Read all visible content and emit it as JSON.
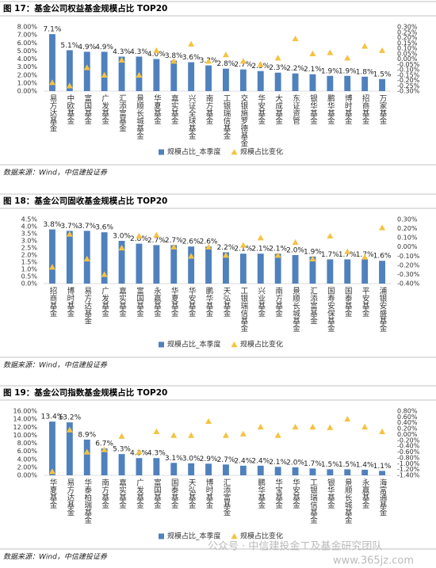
{
  "chart_data": [
    {
      "type": "bar",
      "title": "图 17：基金公司权益基金规模占比 TOP20",
      "source": "数据来源：Wind，中信建投证券",
      "categories": [
        "易方达基金",
        "中欧基金",
        "富国基金",
        "广发基金",
        "汇添富基金",
        "景顺长城基金",
        "华夏基金",
        "嘉实基金",
        "兴证全球基金",
        "南方基金",
        "工银瑞信基金",
        "交银施罗德基金",
        "华安基金",
        "大成基金",
        "东证资管",
        "银华基金",
        "鹏华基金",
        "博时基金",
        "招商基金",
        "万家基金"
      ],
      "series": [
        {
          "name": "规模占比_本季度",
          "type": "bar",
          "color": "#4f81bd",
          "values": [
            7.1,
            5.1,
            4.9,
            4.9,
            4.3,
            4.3,
            4.0,
            3.8,
            3.6,
            3.2,
            2.8,
            2.7,
            2.5,
            2.3,
            2.2,
            2.1,
            1.9,
            1.9,
            1.8,
            1.5
          ],
          "value_labels": [
            "7.1%",
            "5.1%",
            "4.9%",
            "4.9%",
            "4.3%",
            "4.3%",
            "4.0%",
            "3.8%",
            "3.6%",
            "3.2%",
            "2.8%",
            "2.7%",
            "2.5%",
            "2.3%",
            "2.2%",
            "2.1%",
            "1.9%",
            "1.9%",
            "1.8%",
            "1.5%"
          ]
        },
        {
          "name": "规模占比变化",
          "type": "scatter",
          "axis": "y2",
          "color": "#f5c342",
          "values": [
            -0.22,
            -0.25,
            -0.08,
            -0.15,
            -0.01,
            -0.15,
            0.08,
            -0.02,
            0.14,
            -0.02,
            0.04,
            -0.02,
            -0.05,
            0.01,
            0.19,
            0.05,
            0.06,
            0.01,
            0.12,
            0.08
          ]
        }
      ],
      "ylim": [
        0,
        8
      ],
      "yticks": [
        {
          "value": 0,
          "label": "0.00%"
        },
        {
          "value": 1,
          "label": "1.00%"
        },
        {
          "value": 2,
          "label": "2.00%"
        },
        {
          "value": 3,
          "label": "3.00%"
        },
        {
          "value": 4,
          "label": "4.00%"
        },
        {
          "value": 5,
          "label": "5.00%"
        },
        {
          "value": 6,
          "label": "6.00%"
        },
        {
          "value": 7,
          "label": "7.00%"
        },
        {
          "value": 8,
          "label": "8.00%"
        }
      ],
      "y2lim": [
        -0.3,
        0.3
      ],
      "y2ticks": [
        {
          "value": -0.3,
          "label": "-0.30%"
        },
        {
          "value": -0.25,
          "label": "-0.25%"
        },
        {
          "value": -0.2,
          "label": "-0.20%"
        },
        {
          "value": -0.15,
          "label": "-0.15%"
        },
        {
          "value": -0.1,
          "label": "-0.10%"
        },
        {
          "value": -0.05,
          "label": "-0.05%"
        },
        {
          "value": 0,
          "label": "0.00%"
        },
        {
          "value": 0.05,
          "label": "0.05%"
        },
        {
          "value": 0.1,
          "label": "0.10%"
        },
        {
          "value": 0.15,
          "label": "0.15%"
        },
        {
          "value": 0.2,
          "label": "0.20%"
        },
        {
          "value": 0.25,
          "label": "0.25%"
        },
        {
          "value": 0.3,
          "label": "0.30%"
        }
      ],
      "legend": "bottom"
    },
    {
      "type": "bar",
      "title": "图 18：基金公司固收基金规模占比 TOP20",
      "source": "数据来源：Wind，中信建投证券",
      "categories": [
        "招商基金",
        "博时基金",
        "易方达基金",
        "广发基金",
        "嘉实基金",
        "富国基金",
        "永赢基金",
        "华夏基金",
        "华安基金",
        "鹏华基金",
        "天弘基金",
        "工银瑞信基金",
        "兴业基金",
        "南方基金",
        "景顺长城基金",
        "汇添富基金",
        "国寿安保基金",
        "国泰基金",
        "平安基金",
        "浦银安盛基金"
      ],
      "series": [
        {
          "name": "规模占比_本季度",
          "type": "bar",
          "color": "#4f81bd",
          "values": [
            3.8,
            3.7,
            3.7,
            3.6,
            3.0,
            2.8,
            2.7,
            2.7,
            2.6,
            2.6,
            2.2,
            2.1,
            2.1,
            2.1,
            2.0,
            1.9,
            1.7,
            1.7,
            1.7,
            1.6
          ],
          "value_labels": [
            "3.8%",
            "3.7%",
            "3.7%",
            "3.6%",
            "3.0%",
            "2.8%",
            "2.7%",
            "2.7%",
            "2.6%",
            "2.6%",
            "2.2%",
            "2.1%",
            "2.1%",
            "2.1%",
            "2.0%",
            "1.9%",
            "1.7%",
            "1.7%",
            "1.7%",
            "1.6%"
          ]
        },
        {
          "name": "规模占比变化",
          "type": "scatter",
          "axis": "y2",
          "color": "#f5c342",
          "values": [
            -0.22,
            0.14,
            -0.13,
            -0.3,
            -0.01,
            0.12,
            0.13,
            0.0,
            -0.1,
            0.0,
            -0.09,
            0.02,
            0.1,
            -0.09,
            0.05,
            -0.13,
            0.12,
            -0.05,
            -0.11,
            0.21
          ]
        }
      ],
      "ylim": [
        0,
        4.5
      ],
      "yticks": [
        {
          "value": 0,
          "label": "0.0%"
        },
        {
          "value": 0.5,
          "label": "0.5%"
        },
        {
          "value": 1,
          "label": "1.0%"
        },
        {
          "value": 1.5,
          "label": "1.5%"
        },
        {
          "value": 2,
          "label": "2.0%"
        },
        {
          "value": 2.5,
          "label": "2.5%"
        },
        {
          "value": 3,
          "label": "3.0%"
        },
        {
          "value": 3.5,
          "label": "3.5%"
        },
        {
          "value": 4,
          "label": "4.0%"
        },
        {
          "value": 4.5,
          "label": "4.5%"
        }
      ],
      "y2lim": [
        -0.4,
        0.3
      ],
      "y2ticks": [
        {
          "value": -0.4,
          "label": "-0.40%"
        },
        {
          "value": -0.3,
          "label": "-0.30%"
        },
        {
          "value": -0.2,
          "label": "-0.20%"
        },
        {
          "value": -0.1,
          "label": "-0.10%"
        },
        {
          "value": 0,
          "label": "0.00%"
        },
        {
          "value": 0.1,
          "label": "0.10%"
        },
        {
          "value": 0.2,
          "label": "0.20%"
        },
        {
          "value": 0.3,
          "label": "0.30%"
        }
      ],
      "legend": "bottom"
    },
    {
      "type": "bar",
      "title": "图 19：基金公司指数基金规模占比 TOP20",
      "source": "数据来源：Wind，中信建投证券",
      "categories": [
        "华夏基金",
        "易方达基金",
        "华泰柏瑞基金",
        "南方基金",
        "嘉实基金",
        "广发基金",
        "富国基金",
        "国泰基金",
        "天弘基金",
        "博时基金",
        "汇添富基金",
        null,
        "鹏华基金",
        "华宝基金",
        "华安基金",
        "工银瑞信基金",
        "银华基金",
        "景顺长城基金",
        "永赢基金",
        "海富通基金"
      ],
      "series": [
        {
          "name": "规模占比_本季度",
          "type": "bar",
          "color": "#4f81bd",
          "values": [
            13.4,
            13.2,
            8.9,
            6.7,
            5.3,
            4.3,
            4.3,
            3.1,
            3.0,
            2.9,
            2.7,
            2.4,
            2.4,
            2.1,
            2.0,
            1.7,
            1.5,
            1.5,
            1.4,
            1.1
          ],
          "value_labels": [
            "13.4%",
            "13.2%",
            "8.9%",
            "6.7%",
            "5.3%",
            "4.3%",
            "4.3%",
            "3.1%",
            "3.0%",
            "2.9%",
            "2.7%",
            "2.4%",
            "2.4%",
            "2.1%",
            "2.0%",
            "1.7%",
            "1.5%",
            "1.5%",
            "1.4%",
            "1.1%"
          ]
        },
        {
          "name": "规模占比变化",
          "type": "scatter",
          "axis": "y2",
          "color": "#f5c342",
          "values": [
            -1.27,
            0.16,
            -0.6,
            -0.52,
            -0.06,
            -0.6,
            0.1,
            -0.03,
            -0.03,
            0.45,
            -0.03,
            0.02,
            0.26,
            -0.03,
            0.26,
            0.26,
            0.24,
            0.53,
            0.26,
            0.1
          ]
        }
      ],
      "ylim": [
        0,
        16
      ],
      "yticks": [
        {
          "value": 0,
          "label": "0.00%"
        },
        {
          "value": 2,
          "label": "2.00%"
        },
        {
          "value": 4,
          "label": "4.00%"
        },
        {
          "value": 6,
          "label": "6.00%"
        },
        {
          "value": 8,
          "label": "8.00%"
        },
        {
          "value": 10,
          "label": "10.00%"
        },
        {
          "value": 12,
          "label": "12.00%"
        },
        {
          "value": 14,
          "label": "14.00%"
        },
        {
          "value": 16,
          "label": "16.00%"
        }
      ],
      "y2lim": [
        -1.4,
        0.8
      ],
      "y2ticks": [
        {
          "value": -1.4,
          "label": "-1.40%"
        },
        {
          "value": -1.2,
          "label": "-1.20%"
        },
        {
          "value": -1,
          "label": "-1.00%"
        },
        {
          "value": -0.8,
          "label": "-0.80%"
        },
        {
          "value": -0.6,
          "label": "-0.60%"
        },
        {
          "value": -0.4,
          "label": "-0.40%"
        },
        {
          "value": -0.2,
          "label": "-0.20%"
        },
        {
          "value": 0,
          "label": "0.00%"
        },
        {
          "value": 0.2,
          "label": "0.20%"
        },
        {
          "value": 0.4,
          "label": "0.40%"
        },
        {
          "value": 0.6,
          "label": "0.60%"
        },
        {
          "value": 0.8,
          "label": "0.80%"
        }
      ],
      "legend": "bottom"
    }
  ],
  "watermark": [
    "公众号 · 中信建投金工及基金研究团队",
    "www.365jz.com"
  ]
}
